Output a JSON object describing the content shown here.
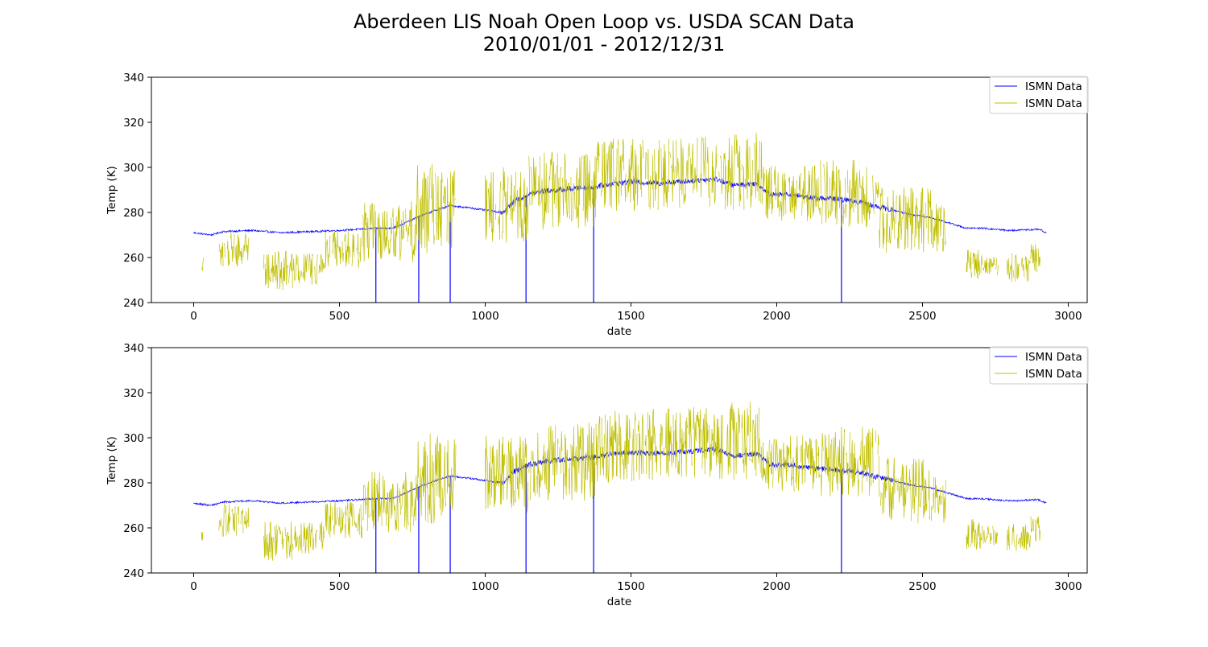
{
  "figure": {
    "title_line1": "Aberdeen LIS Noah Open Loop vs. USDA SCAN Data",
    "title_line2": "2010/01/01 - 2012/12/31"
  },
  "colors": {
    "series_model": "#0000ff",
    "series_obs": "#bfbf00",
    "axes": "#000000",
    "legend_border": "#cccccc"
  },
  "chart_data": [
    {
      "type": "line",
      "title": "",
      "xlabel": "date",
      "ylabel": "Temp (K)",
      "xlim": [
        -145,
        3065
      ],
      "ylim": [
        240,
        340
      ],
      "xticks": [
        0,
        500,
        1000,
        1500,
        2000,
        2500,
        3000
      ],
      "yticks": [
        240,
        260,
        280,
        300,
        320,
        340
      ],
      "grid": false,
      "legend_position": "top-right",
      "series": [
        {
          "name": "ISMN Data",
          "color": "#0000ff",
          "kind": "model",
          "x": [
            0,
            60,
            100,
            200,
            300,
            400,
            500,
            560,
            620,
            680,
            720,
            770,
            830,
            880,
            950,
            1000,
            1060,
            1100,
            1150,
            1200,
            1300,
            1380,
            1450,
            1500,
            1600,
            1700,
            1790,
            1850,
            1930,
            1980,
            2050,
            2120,
            2200,
            2270,
            2330,
            2400,
            2460,
            2520,
            2600,
            2650,
            2700,
            2800,
            2900,
            2925
          ],
          "y": [
            271,
            270,
            271.5,
            272,
            271,
            271.5,
            272,
            272.5,
            273,
            273,
            275,
            278,
            281,
            283,
            282,
            281,
            280,
            285,
            288,
            289.5,
            290.5,
            291.5,
            293,
            293.5,
            293,
            294,
            295,
            292,
            293,
            288,
            288,
            286.5,
            286,
            285,
            283,
            281,
            279,
            278,
            275,
            273,
            273,
            272,
            272.5,
            271
          ],
          "gaps": [
            625,
            772,
            880,
            1140,
            1372,
            2222
          ],
          "gap_drop_to": 240
        },
        {
          "name": "ISMN Data",
          "color": "#bfbf00",
          "kind": "obs",
          "segments": [
            {
              "x0": 25,
              "x1": 35,
              "lo": 254,
              "hi": 260
            },
            {
              "x0": 85,
              "x1": 190,
              "lo": 256,
              "hi": 271
            },
            {
              "x0": 240,
              "x1": 340,
              "lo": 245,
              "hi": 263
            },
            {
              "x0": 340,
              "x1": 450,
              "lo": 248,
              "hi": 263
            },
            {
              "x0": 450,
              "x1": 580,
              "lo": 255,
              "hi": 272
            },
            {
              "x0": 580,
              "x1": 760,
              "lo": 258,
              "hi": 285
            },
            {
              "x0": 760,
              "x1": 900,
              "lo": 262,
              "hi": 302
            },
            {
              "x0": 1000,
              "x1": 1150,
              "lo": 266,
              "hi": 301
            },
            {
              "x0": 1150,
              "x1": 1380,
              "lo": 272,
              "hi": 307
            },
            {
              "x0": 1380,
              "x1": 1600,
              "lo": 280,
              "hi": 313
            },
            {
              "x0": 1600,
              "x1": 1800,
              "lo": 282,
              "hi": 314
            },
            {
              "x0": 1800,
              "x1": 1950,
              "lo": 281,
              "hi": 316
            },
            {
              "x0": 1950,
              "x1": 2150,
              "lo": 276,
              "hi": 301
            },
            {
              "x0": 2150,
              "x1": 2350,
              "lo": 273,
              "hi": 305
            },
            {
              "x0": 2350,
              "x1": 2530,
              "lo": 262,
              "hi": 292
            },
            {
              "x0": 2530,
              "x1": 2580,
              "lo": 262,
              "hi": 284
            },
            {
              "x0": 2650,
              "x1": 2700,
              "lo": 250,
              "hi": 264
            },
            {
              "x0": 2700,
              "x1": 2760,
              "lo": 252,
              "hi": 261
            },
            {
              "x0": 2790,
              "x1": 2870,
              "lo": 249,
              "hi": 262
            },
            {
              "x0": 2870,
              "x1": 2905,
              "lo": 253,
              "hi": 266
            }
          ]
        }
      ]
    },
    {
      "type": "line",
      "title": "",
      "xlabel": "date",
      "ylabel": "Temp (K)",
      "xlim": [
        -145,
        3065
      ],
      "ylim": [
        240,
        340
      ],
      "xticks": [
        0,
        500,
        1000,
        1500,
        2000,
        2500,
        3000
      ],
      "yticks": [
        240,
        260,
        280,
        300,
        320,
        340
      ],
      "grid": false,
      "legend_position": "top-right",
      "series": [
        {
          "name": "ISMN Data",
          "color": "#0000ff",
          "kind": "model",
          "x": [
            0,
            60,
            100,
            200,
            300,
            400,
            500,
            560,
            620,
            680,
            720,
            770,
            830,
            880,
            950,
            1000,
            1060,
            1100,
            1150,
            1200,
            1300,
            1380,
            1450,
            1500,
            1600,
            1700,
            1790,
            1850,
            1930,
            1980,
            2050,
            2120,
            2200,
            2270,
            2330,
            2400,
            2460,
            2520,
            2600,
            2650,
            2700,
            2800,
            2900,
            2925
          ],
          "y": [
            271,
            270,
            271.5,
            272,
            271,
            271.5,
            272,
            272.5,
            273,
            273,
            275,
            278,
            281,
            283,
            282,
            281,
            280,
            285,
            288,
            289.5,
            290.5,
            291.5,
            293,
            293.5,
            293,
            294,
            295,
            292,
            293,
            288,
            288,
            286.5,
            286,
            285,
            283,
            281,
            279,
            278,
            275,
            273,
            273,
            272,
            272.5,
            271
          ],
          "gaps": [
            625,
            772,
            880,
            1140,
            1372,
            2222
          ],
          "gap_drop_to": 240
        },
        {
          "name": "ISMN Data",
          "color": "#bfbf00",
          "kind": "obs",
          "segments": [
            {
              "x0": 25,
              "x1": 35,
              "lo": 254,
              "hi": 260
            },
            {
              "x0": 85,
              "x1": 190,
              "lo": 256,
              "hi": 271
            },
            {
              "x0": 240,
              "x1": 340,
              "lo": 245,
              "hi": 263
            },
            {
              "x0": 340,
              "x1": 450,
              "lo": 248,
              "hi": 263
            },
            {
              "x0": 450,
              "x1": 580,
              "lo": 255,
              "hi": 272
            },
            {
              "x0": 580,
              "x1": 760,
              "lo": 258,
              "hi": 285
            },
            {
              "x0": 760,
              "x1": 900,
              "lo": 262,
              "hi": 302
            },
            {
              "x0": 1000,
              "x1": 1150,
              "lo": 266,
              "hi": 301
            },
            {
              "x0": 1150,
              "x1": 1380,
              "lo": 272,
              "hi": 307
            },
            {
              "x0": 1380,
              "x1": 1600,
              "lo": 280,
              "hi": 313
            },
            {
              "x0": 1600,
              "x1": 1800,
              "lo": 282,
              "hi": 314
            },
            {
              "x0": 1800,
              "x1": 1950,
              "lo": 281,
              "hi": 316
            },
            {
              "x0": 1950,
              "x1": 2150,
              "lo": 276,
              "hi": 301
            },
            {
              "x0": 2150,
              "x1": 2350,
              "lo": 273,
              "hi": 305
            },
            {
              "x0": 2350,
              "x1": 2530,
              "lo": 262,
              "hi": 292
            },
            {
              "x0": 2530,
              "x1": 2580,
              "lo": 262,
              "hi": 284
            },
            {
              "x0": 2650,
              "x1": 2700,
              "lo": 250,
              "hi": 264
            },
            {
              "x0": 2700,
              "x1": 2760,
              "lo": 252,
              "hi": 261
            },
            {
              "x0": 2790,
              "x1": 2870,
              "lo": 249,
              "hi": 262
            },
            {
              "x0": 2870,
              "x1": 2905,
              "lo": 253,
              "hi": 266
            }
          ]
        }
      ]
    }
  ]
}
